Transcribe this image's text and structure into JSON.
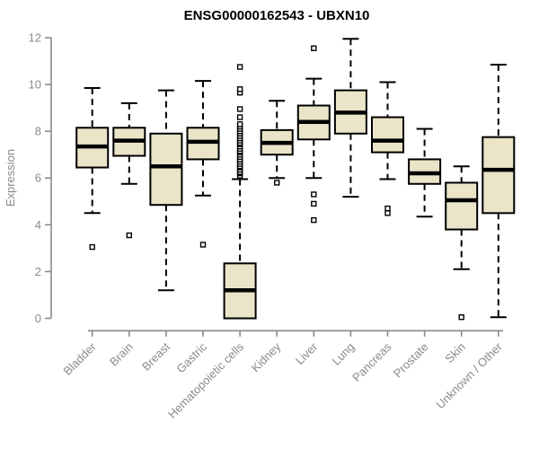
{
  "chart_data": {
    "type": "box",
    "title": "ENSG00000162543 - UBXN10",
    "xlabel": "",
    "ylabel": "Expression",
    "ylim": [
      0,
      12
    ],
    "yticks": [
      0,
      2,
      4,
      6,
      8,
      10,
      12
    ],
    "grid": false,
    "legend_position": "none",
    "categories": [
      "Bladder",
      "Brain",
      "Breast",
      "Gastric",
      "Hematopoietic cells",
      "Kidney",
      "Liver",
      "Lung",
      "Pancreas",
      "Prostate",
      "Skin",
      "Unknown / Other"
    ],
    "boxes": [
      {
        "category": "Bladder",
        "whisker_low": 4.5,
        "q1": 6.45,
        "median": 7.35,
        "q3": 8.15,
        "whisker_high": 9.85,
        "outliers": [
          3.05
        ]
      },
      {
        "category": "Brain",
        "whisker_low": 5.75,
        "q1": 6.95,
        "median": 7.6,
        "q3": 8.15,
        "whisker_high": 9.2,
        "outliers": [
          3.55
        ]
      },
      {
        "category": "Breast",
        "whisker_low": 1.2,
        "q1": 4.85,
        "median": 6.5,
        "q3": 7.9,
        "whisker_high": 9.75,
        "outliers": []
      },
      {
        "category": "Gastric",
        "whisker_low": 5.25,
        "q1": 6.8,
        "median": 7.55,
        "q3": 8.15,
        "whisker_high": 10.15,
        "outliers": [
          3.15
        ]
      },
      {
        "category": "Hematopoietic cells",
        "whisker_low": 0.0,
        "q1": 0.0,
        "median": 1.2,
        "q3": 2.35,
        "whisker_high": 5.95,
        "outliers": [
          6.1,
          6.2,
          6.25,
          6.35,
          6.45,
          6.5,
          6.6,
          6.7,
          6.8,
          6.9,
          7.0,
          7.1,
          7.15,
          7.25,
          7.35,
          7.45,
          7.5,
          7.6,
          7.7,
          7.8,
          7.9,
          8.0,
          8.1,
          8.2,
          8.3,
          8.6,
          8.95,
          9.65,
          9.8,
          10.75
        ]
      },
      {
        "category": "Kidney",
        "whisker_low": 6.0,
        "q1": 7.0,
        "median": 7.5,
        "q3": 8.05,
        "whisker_high": 9.3,
        "outliers": [
          5.8
        ]
      },
      {
        "category": "Liver",
        "whisker_low": 6.0,
        "q1": 7.65,
        "median": 8.4,
        "q3": 9.1,
        "whisker_high": 10.25,
        "outliers": [
          11.55,
          5.3,
          4.9,
          4.2
        ]
      },
      {
        "category": "Lung",
        "whisker_low": 5.2,
        "q1": 7.9,
        "median": 8.8,
        "q3": 9.75,
        "whisker_high": 11.95,
        "outliers": []
      },
      {
        "category": "Pancreas",
        "whisker_low": 5.95,
        "q1": 7.1,
        "median": 7.6,
        "q3": 8.6,
        "whisker_high": 10.1,
        "outliers": [
          4.7,
          4.5
        ]
      },
      {
        "category": "Prostate",
        "whisker_low": 4.35,
        "q1": 5.75,
        "median": 6.2,
        "q3": 6.8,
        "whisker_high": 8.1,
        "outliers": []
      },
      {
        "category": "Skin",
        "whisker_low": 2.1,
        "q1": 3.8,
        "median": 5.05,
        "q3": 5.8,
        "whisker_high": 6.5,
        "outliers": [
          0.05
        ]
      },
      {
        "category": "Unknown / Other",
        "whisker_low": 0.05,
        "q1": 4.5,
        "median": 6.35,
        "q3": 7.75,
        "whisker_high": 10.85,
        "outliers": []
      }
    ],
    "colors": {
      "box_fill": "#EAE4C8",
      "box_stroke": "#000000",
      "median": "#000000",
      "whisker": "#000000",
      "outlier_stroke": "#000000",
      "outlier_fill": "#FFFFFF",
      "axis_line": "#8a8a8a",
      "axis_text": "#8a8a8a",
      "title_text": "#000000",
      "background": "#FFFFFF"
    }
  }
}
